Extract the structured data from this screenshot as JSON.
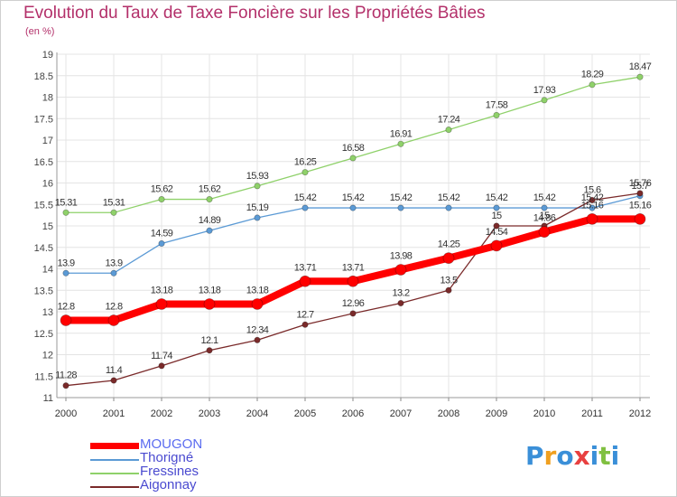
{
  "chart_data": {
    "type": "line",
    "title": "Evolution du Taux de Taxe Foncière sur les Propriétés Bâties",
    "subtitle": "(en %)",
    "xlabel": "",
    "ylabel": "",
    "x": [
      "2000",
      "2001",
      "2002",
      "2003",
      "2004",
      "2005",
      "2006",
      "2007",
      "2008",
      "2009",
      "2010",
      "2011",
      "2012"
    ],
    "yticks": [
      "11",
      "11.5",
      "12",
      "12.5",
      "13",
      "13.5",
      "14",
      "14.5",
      "15",
      "15.5",
      "16",
      "16.5",
      "17",
      "17.5",
      "18",
      "18.5",
      "19"
    ],
    "ylim": [
      11,
      19
    ],
    "grid": true,
    "legend_position": "bottom-left",
    "series": [
      {
        "name": "Fressines",
        "color": "#8fd16a",
        "values": [
          15.31,
          15.31,
          15.62,
          15.62,
          15.93,
          16.25,
          16.58,
          16.91,
          17.24,
          17.58,
          17.93,
          18.29,
          18.47
        ],
        "labels": [
          "15.31",
          "15.31",
          "15.62",
          "15.62",
          "15.93",
          "16.25",
          "16.58",
          "16.91",
          "17.24",
          "17.58",
          "17.93",
          "18.29",
          "18.47"
        ]
      },
      {
        "name": "Thorigné",
        "color": "#5b9ad5",
        "values": [
          13.9,
          13.9,
          14.59,
          14.89,
          15.19,
          15.42,
          15.42,
          15.42,
          15.42,
          15.42,
          15.42,
          15.42,
          15.7
        ],
        "labels": [
          "13.9",
          "13.9",
          "14.59",
          "14.89",
          "15.19",
          "15.42",
          "15.42",
          "15.42",
          "15.42",
          "15.42",
          "15.42",
          "15.42",
          "15.7"
        ]
      },
      {
        "name": "Aigonnay",
        "color": "#7a2a2a",
        "values": [
          11.28,
          11.4,
          11.74,
          12.1,
          12.34,
          12.7,
          12.96,
          13.2,
          13.5,
          15,
          15,
          15.6,
          15.76
        ],
        "labels": [
          "11.28",
          "11.4",
          "11.74",
          "12.1",
          "12.34",
          "12.7",
          "12.96",
          "13.2",
          "13.5",
          "15",
          "15",
          "15.6",
          "15.76"
        ]
      },
      {
        "name": "MOUGON",
        "color": "#ff0000",
        "values": [
          12.8,
          12.8,
          13.18,
          13.18,
          13.18,
          13.71,
          13.71,
          13.98,
          14.25,
          14.54,
          14.86,
          15.16,
          15.16
        ],
        "labels": [
          "12.8",
          "12.8",
          "13.18",
          "13.18",
          "13.18",
          "13.71",
          "13.71",
          "13.98",
          "14.25",
          "14.54",
          "14.86",
          "15.16",
          "15.16"
        ]
      }
    ],
    "legend": [
      {
        "name": "MOUGON",
        "color": "#ff0000",
        "text_color": "#5b6cf0"
      },
      {
        "name": "Thorigné",
        "color": "#5b9ad5",
        "text_color": "#4a4ad0"
      },
      {
        "name": "Fressines",
        "color": "#8fd16a",
        "text_color": "#4a4ad0"
      },
      {
        "name": "Aigonnay",
        "color": "#7a2a2a",
        "text_color": "#4a4ad0"
      }
    ]
  },
  "logo": {
    "text": "Proxiti",
    "colors": [
      "#3a8fd8",
      "#f0a020",
      "#3a8fd8",
      "#e84040",
      "#3a8fd8",
      "#80c040",
      "#3a8fd8"
    ]
  }
}
